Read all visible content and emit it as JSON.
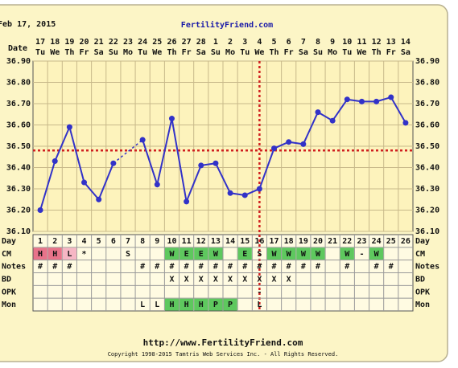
{
  "chart_data": {
    "type": "line",
    "date": "Feb 17, 2015",
    "title": "FertilityFriend.com",
    "x_label": "Date",
    "categories": [
      "17",
      "18",
      "19",
      "20",
      "21",
      "22",
      "23",
      "24",
      "25",
      "26",
      "27",
      "28",
      "1",
      "2",
      "3",
      "4",
      "5",
      "6",
      "7",
      "8",
      "9",
      "10",
      "11",
      "12",
      "13",
      "14"
    ],
    "weekdays": [
      "Tu",
      "We",
      "Th",
      "Fr",
      "Sa",
      "Su",
      "Mo",
      "Tu",
      "We",
      "Th",
      "Fr",
      "Sa",
      "Su",
      "Mo",
      "Tu",
      "We",
      "Th",
      "Fr",
      "Sa",
      "Su",
      "Mo",
      "Tu",
      "We",
      "Th",
      "Fr",
      "Sa"
    ],
    "values": [
      36.2,
      36.43,
      36.59,
      36.33,
      36.25,
      36.42,
      null,
      36.53,
      36.32,
      36.63,
      36.24,
      36.41,
      36.42,
      36.28,
      36.27,
      36.3,
      36.49,
      36.52,
      36.51,
      36.66,
      36.62,
      36.72,
      36.71,
      36.71,
      36.73,
      36.61
    ],
    "color": "#3232c8",
    "ylim": [
      36.1,
      36.9
    ],
    "yticks": [
      {
        "value": 36.1,
        "label": "36.10"
      },
      {
        "value": 36.2,
        "label": "36.20"
      },
      {
        "value": 36.3,
        "label": "36.30"
      },
      {
        "value": 36.4,
        "label": "36.40"
      },
      {
        "value": 36.5,
        "label": "36.50"
      },
      {
        "value": 36.6,
        "label": "36.60"
      },
      {
        "value": 36.7,
        "label": "36.70"
      },
      {
        "value": 36.8,
        "label": "36.80"
      },
      {
        "value": 36.9,
        "label": "36.90"
      }
    ],
    "coverline": 36.48,
    "ovulation_day": 16,
    "rows": [
      {
        "label": "Day",
        "cells": [
          "1",
          "2",
          "3",
          "4",
          "5",
          "6",
          "7",
          "8",
          "9",
          "10",
          "11",
          "12",
          "13",
          "14",
          "15",
          "16",
          "17",
          "18",
          "19",
          "20",
          "21",
          "22",
          "23",
          "24",
          "25",
          "26"
        ]
      },
      {
        "label": "CM",
        "cells": [
          "H",
          "H",
          "L",
          "*",
          null,
          null,
          "S",
          null,
          null,
          "W",
          "E",
          "E",
          "W",
          null,
          "E",
          "S",
          "W",
          "W",
          "W",
          "W",
          null,
          "W",
          "-",
          "W",
          null,
          null
        ],
        "colors": [
          "#e8738a",
          "#e8738a",
          "#f6b6c4",
          null,
          null,
          null,
          null,
          null,
          null,
          "#5ec85e",
          "#5ec85e",
          "#5ec85e",
          "#5ec85e",
          null,
          "#5ec85e",
          null,
          "#5ec85e",
          "#5ec85e",
          "#5ec85e",
          "#5ec85e",
          null,
          "#5ec85e",
          null,
          "#5ec85e",
          null,
          null
        ]
      },
      {
        "label": "Notes",
        "cells": [
          "#",
          "#",
          "#",
          null,
          null,
          null,
          null,
          "#",
          "#",
          "#",
          "#",
          "#",
          "#",
          "#",
          "#",
          "#",
          "#",
          "#",
          "#",
          "#",
          null,
          "#",
          null,
          "#",
          "#",
          null
        ]
      },
      {
        "label": "BD",
        "cells": [
          null,
          null,
          null,
          null,
          null,
          null,
          null,
          null,
          null,
          "X",
          "X",
          "X",
          "X",
          "X",
          "X",
          "X",
          "X",
          "X",
          null,
          null,
          null,
          null,
          null,
          null,
          null,
          null
        ]
      },
      {
        "label": "OPK",
        "cells": [
          null,
          null,
          null,
          null,
          null,
          null,
          null,
          null,
          null,
          null,
          null,
          null,
          null,
          null,
          null,
          "-",
          null,
          null,
          null,
          null,
          null,
          null,
          null,
          null,
          null,
          null
        ]
      },
      {
        "label": "Mon",
        "cells": [
          null,
          null,
          null,
          null,
          null,
          null,
          null,
          "L",
          "L",
          "H",
          "H",
          "H",
          "P",
          "P",
          null,
          "L",
          null,
          null,
          null,
          null,
          null,
          null,
          null,
          null,
          null,
          null
        ],
        "colors": [
          null,
          null,
          null,
          null,
          null,
          null,
          null,
          null,
          null,
          "#5ec85e",
          "#5ec85e",
          "#5ec85e",
          "#5ec85e",
          "#5ec85e",
          null,
          null,
          null,
          null,
          null,
          null,
          null,
          null,
          null,
          null,
          null,
          null
        ]
      }
    ],
    "url": "http://www.FertilityFriend.com",
    "copyright": "Copyright 1998-2015 Tamtris Web Services Inc. - All Rights Reserved."
  }
}
